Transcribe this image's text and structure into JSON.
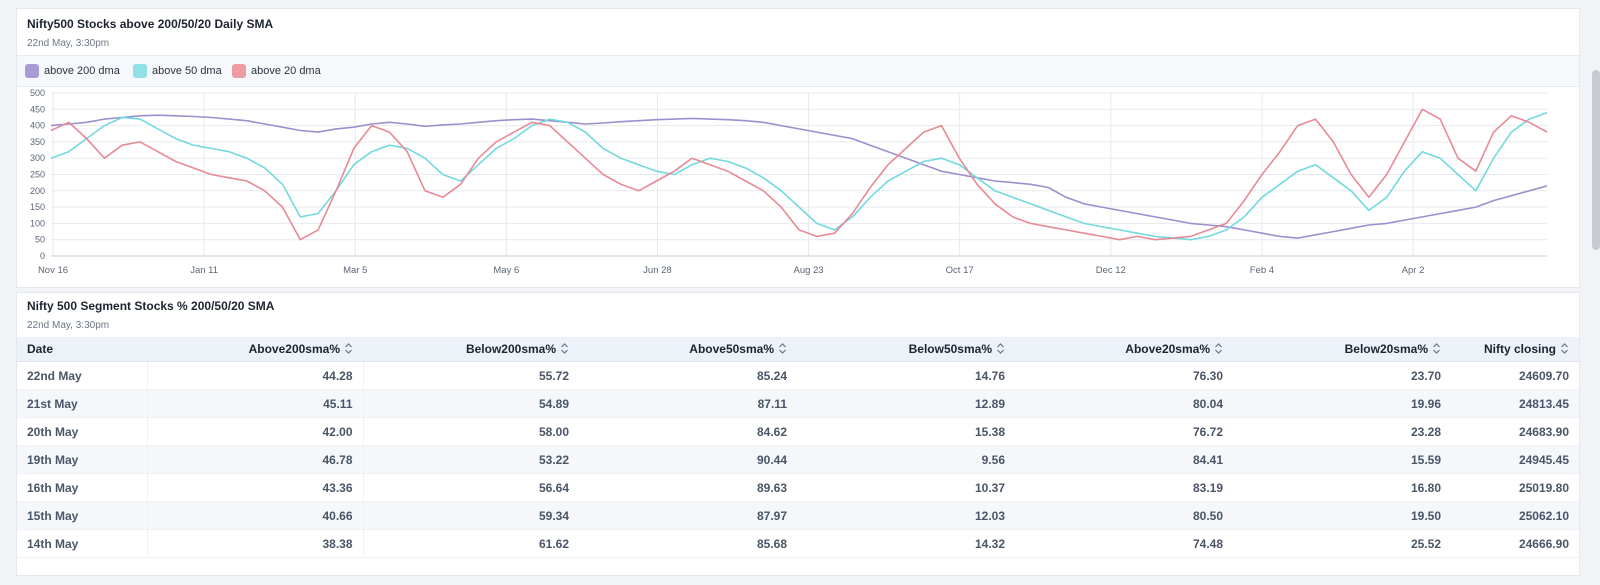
{
  "chart_card": {
    "title": "Nifty500 Stocks above 200/50/20 Daily SMA",
    "subtitle": "22nd May, 3:30pm"
  },
  "colors": {
    "s200": "#9d8fcd",
    "s50": "#73d9df",
    "s20": "#e88a95",
    "grid": "#e7e9ee",
    "axis": "#5b6575"
  },
  "chart_data": {
    "type": "line",
    "ylim": [
      0,
      500
    ],
    "yticks": [
      0,
      50,
      100,
      150,
      200,
      250,
      300,
      350,
      400,
      450,
      500
    ],
    "xticks": [
      "Nov 16",
      "Jan 11",
      "Mar 5",
      "May 6",
      "Jun 28",
      "Aug 23",
      "Oct 17",
      "Dec 12",
      "Feb 4",
      "Apr 2"
    ],
    "legend_position": "top-left",
    "grid": true,
    "series": [
      {
        "name": "above 200 dma",
        "color": "#9d8fcd",
        "values": [
          400,
          405,
          410,
          420,
          425,
          430,
          432,
          430,
          428,
          425,
          420,
          415,
          405,
          395,
          385,
          380,
          390,
          395,
          405,
          410,
          405,
          398,
          402,
          405,
          410,
          415,
          418,
          420,
          415,
          410,
          405,
          408,
          412,
          415,
          418,
          420,
          422,
          420,
          418,
          415,
          410,
          400,
          390,
          380,
          370,
          360,
          340,
          320,
          300,
          280,
          260,
          250,
          240,
          230,
          225,
          220,
          210,
          180,
          160,
          150,
          140,
          130,
          120,
          110,
          100,
          95,
          90,
          80,
          70,
          60,
          55,
          65,
          75,
          85,
          95,
          100,
          110,
          120,
          130,
          140,
          150,
          170,
          185,
          200,
          215
        ]
      },
      {
        "name": "above 50 dma",
        "color": "#73d9df",
        "values": [
          300,
          320,
          360,
          400,
          425,
          420,
          390,
          360,
          340,
          330,
          320,
          300,
          270,
          220,
          120,
          130,
          200,
          280,
          320,
          340,
          330,
          300,
          250,
          230,
          280,
          330,
          360,
          400,
          420,
          410,
          380,
          330,
          300,
          280,
          260,
          250,
          280,
          300,
          290,
          270,
          240,
          200,
          150,
          100,
          80,
          120,
          180,
          230,
          260,
          290,
          300,
          280,
          240,
          200,
          180,
          160,
          140,
          120,
          100,
          90,
          80,
          70,
          60,
          55,
          50,
          60,
          80,
          120,
          180,
          220,
          260,
          280,
          240,
          200,
          140,
          180,
          260,
          320,
          300,
          250,
          200,
          300,
          380,
          420,
          440
        ]
      },
      {
        "name": "above 20 dma",
        "color": "#e88a95",
        "values": [
          385,
          410,
          360,
          300,
          340,
          350,
          320,
          290,
          270,
          250,
          240,
          230,
          200,
          150,
          50,
          80,
          200,
          330,
          400,
          380,
          320,
          200,
          180,
          220,
          300,
          350,
          380,
          410,
          400,
          350,
          300,
          250,
          220,
          200,
          230,
          260,
          300,
          280,
          260,
          230,
          200,
          150,
          80,
          60,
          70,
          130,
          210,
          280,
          330,
          380,
          400,
          300,
          220,
          160,
          120,
          100,
          90,
          80,
          70,
          60,
          50,
          60,
          50,
          55,
          60,
          80,
          100,
          170,
          250,
          320,
          400,
          420,
          350,
          250,
          180,
          250,
          350,
          450,
          420,
          300,
          260,
          380,
          430,
          410,
          380
        ]
      }
    ]
  },
  "table_card": {
    "title": "Nifty 500 Segment Stocks % 200/50/20 SMA",
    "subtitle": "22nd May, 3:30pm",
    "columns": [
      "Date",
      "Above200sma%",
      "Below200sma%",
      "Above50sma%",
      "Below50sma%",
      "Above20sma%",
      "Below20sma%",
      "Nifty closing"
    ],
    "rows": [
      [
        "22nd May",
        "44.28",
        "55.72",
        "85.24",
        "14.76",
        "76.30",
        "23.70",
        "24609.70"
      ],
      [
        "21st May",
        "45.11",
        "54.89",
        "87.11",
        "12.89",
        "80.04",
        "19.96",
        "24813.45"
      ],
      [
        "20th May",
        "42.00",
        "58.00",
        "84.62",
        "15.38",
        "76.72",
        "23.28",
        "24683.90"
      ],
      [
        "19th May",
        "46.78",
        "53.22",
        "90.44",
        "9.56",
        "84.41",
        "15.59",
        "24945.45"
      ],
      [
        "16th May",
        "43.36",
        "56.64",
        "89.63",
        "10.37",
        "83.19",
        "16.80",
        "25019.80"
      ],
      [
        "15th May",
        "40.66",
        "59.34",
        "87.97",
        "12.03",
        "80.50",
        "19.50",
        "25062.10"
      ],
      [
        "14th May",
        "38.38",
        "61.62",
        "85.68",
        "14.32",
        "74.48",
        "25.52",
        "24666.90"
      ]
    ]
  }
}
